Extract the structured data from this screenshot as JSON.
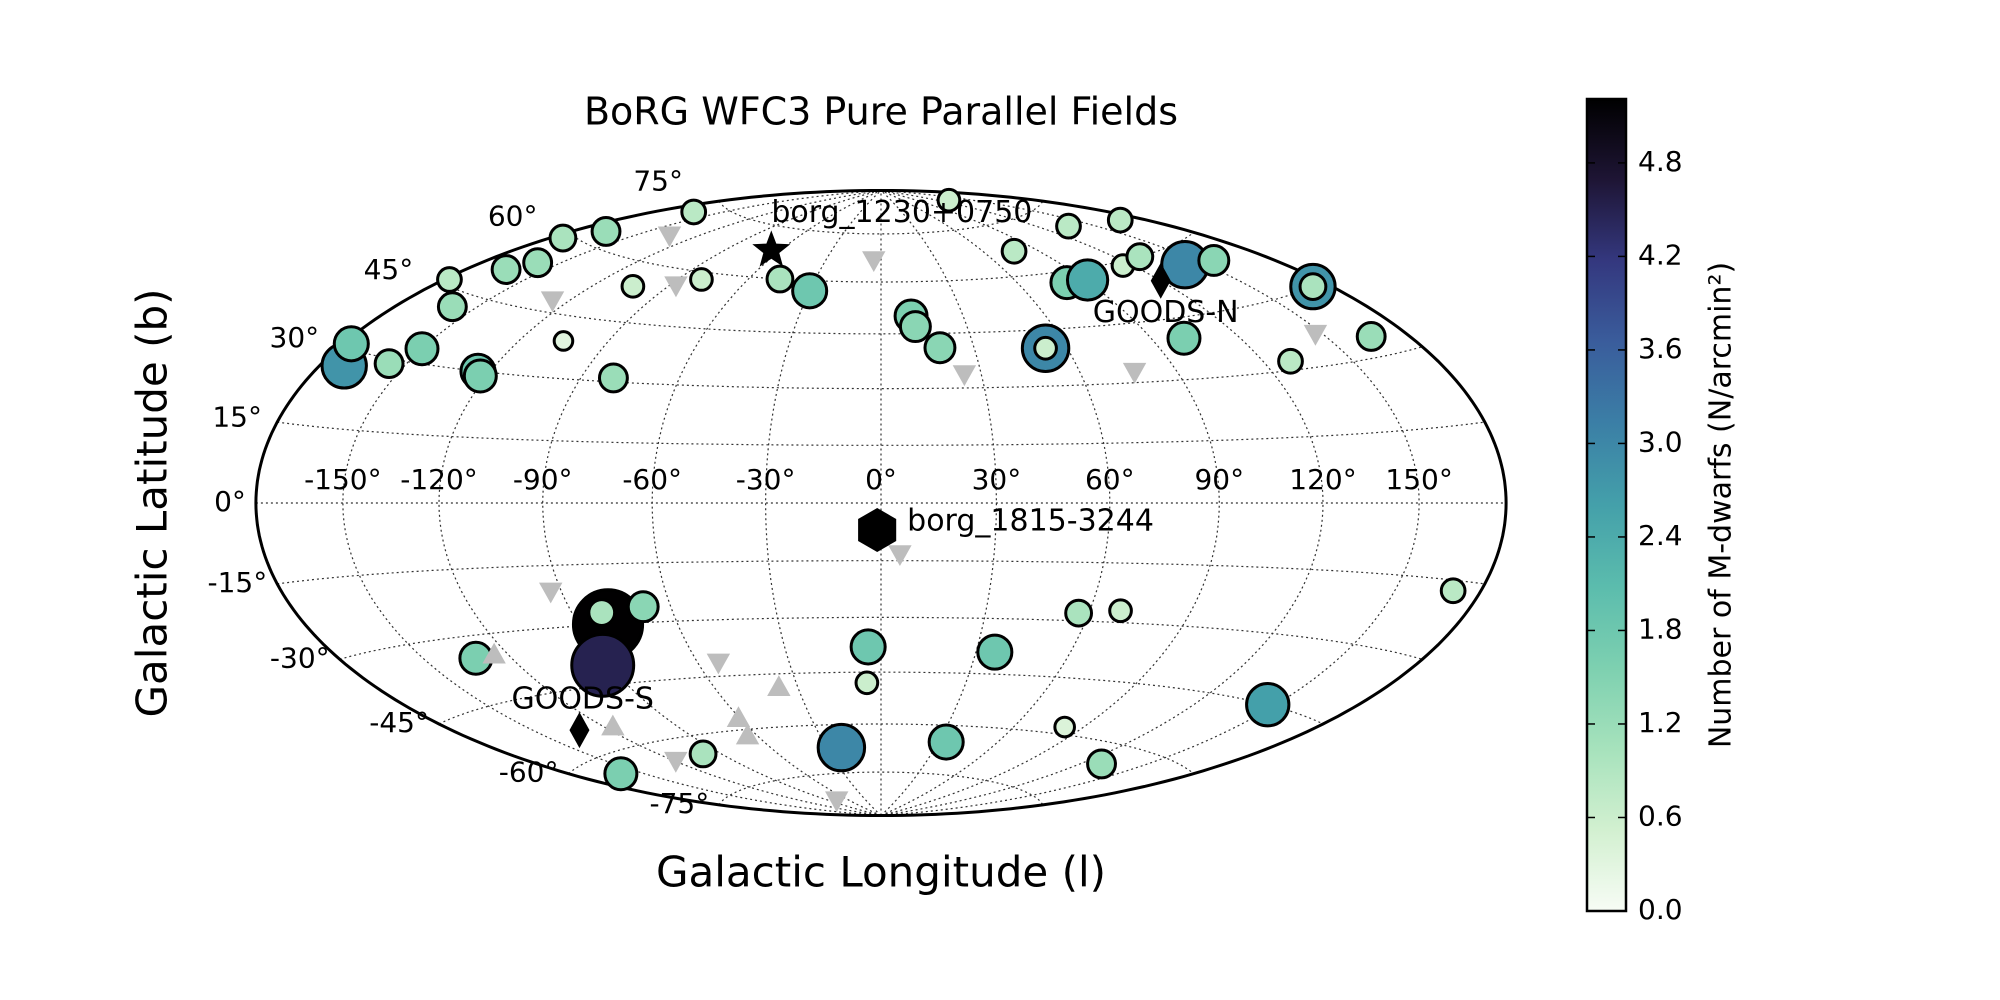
{
  "chart_data": {
    "type": "scatter",
    "projection": "hammer",
    "title": "BoRG WFC3 Pure Parallel Fields",
    "x_label": "Galactic Longitude (l)",
    "y_label": "Galactic Latitude (b)",
    "xlim": [
      -180,
      180
    ],
    "ylim": [
      -90,
      90
    ],
    "grid": true,
    "xticks": [
      {
        "value": -150,
        "label": "-150°"
      },
      {
        "value": -120,
        "label": "-120°"
      },
      {
        "value": -90,
        "label": "-90°"
      },
      {
        "value": -60,
        "label": "-60°"
      },
      {
        "value": -30,
        "label": "-30°"
      },
      {
        "value": 0,
        "label": "0°"
      },
      {
        "value": 30,
        "label": "30°"
      },
      {
        "value": 60,
        "label": "60°"
      },
      {
        "value": 90,
        "label": "90°"
      },
      {
        "value": 120,
        "label": "120°"
      },
      {
        "value": 150,
        "label": "150°"
      }
    ],
    "yticks": [
      {
        "value": -75,
        "label": "-75°"
      },
      {
        "value": -60,
        "label": "-60°"
      },
      {
        "value": -45,
        "label": "-45°"
      },
      {
        "value": -30,
        "label": "-30°"
      },
      {
        "value": -15,
        "label": "-15°"
      },
      {
        "value": 0,
        "label": "0°"
      },
      {
        "value": 15,
        "label": "15°"
      },
      {
        "value": 30,
        "label": "30°"
      },
      {
        "value": 45,
        "label": "45°"
      },
      {
        "value": 60,
        "label": "60°"
      },
      {
        "value": 75,
        "label": "75°"
      }
    ],
    "series": [
      {
        "marker": "o",
        "x": [
          -171,
          -177,
          -156,
          -150,
          -124,
          -122,
          -159,
          -178,
          -165,
          -159,
          -175,
          -167,
          -164,
          -104,
          -80,
          -46,
          -30,
          -80,
          -105,
          11,
          12,
          19,
          132,
          77,
          137,
          170,
          81,
          91,
          116,
          131,
          142,
          157,
          53,
          53,
          101,
          173,
          173,
          166,
          129,
          -81,
          -81,
          -68,
          -92,
          -132,
          -160,
          -99,
          -22,
          -4,
          -5,
          34,
          36,
          57,
          69,
          82,
          130,
          147,
          170
        ],
        "y": [
          27,
          31,
          29,
          33,
          30,
          29,
          42,
          46,
          51,
          54,
          59,
          63,
          72,
          54,
          58,
          60,
          57,
          31,
          39,
          50,
          47,
          41,
          83,
          67,
          70,
          67,
          57,
          57,
          59,
          60,
          56,
          55,
          40,
          40,
          40,
          45,
          45,
          34,
          32,
          -30,
          -27,
          -26,
          -40,
          -35,
          -64,
          -65,
          -67,
          -38,
          -48,
          -65,
          -39,
          -28,
          -27,
          -58,
          -65,
          -45,
          -17
        ],
        "values": [
          2.8,
          1.8,
          1.2,
          1.6,
          1.8,
          1.6,
          1.2,
          0.8,
          1.2,
          1.2,
          1.0,
          1.2,
          0.8,
          0.6,
          0.6,
          1.0,
          1.8,
          1.2,
          0.3,
          1.6,
          1.4,
          1.4,
          0.6,
          0.8,
          0.8,
          0.8,
          1.6,
          2.4,
          0.6,
          1.0,
          3.0,
          1.4,
          3.0,
          0.6,
          1.6,
          2.8,
          1.0,
          1.2,
          0.8,
          5.2,
          1.0,
          1.4,
          4.5,
          1.6,
          1.6,
          1.0,
          3.0,
          1.8,
          0.6,
          1.8,
          1.8,
          1.0,
          0.6,
          0.4,
          1.2,
          2.6,
          0.8
        ]
      },
      {
        "marker": "v",
        "color": "#bdbdbd",
        "x": [
          -136,
          -127,
          -88,
          -4,
          25,
          77,
          148,
          -93,
          5,
          -53,
          -118,
          -75
        ],
        "y": [
          67,
          48,
          56,
          67,
          34,
          33,
          37,
          -21,
          -13,
          -41,
          -65,
          -83
        ]
      },
      {
        "marker": "^",
        "color": "#bdbdbd",
        "x": [
          -125,
          -37,
          -61,
          -65,
          -117
        ],
        "y": [
          -35,
          -49,
          -57,
          -62,
          -55
        ]
      }
    ],
    "annotations": [
      {
        "text": "borg_1230+0750",
        "marker": "star",
        "x": -65,
        "y": 68
      },
      {
        "text": "GOODS-N",
        "marker": "diamond",
        "x": 120,
        "y": 54
      },
      {
        "text": "borg_1815-3244",
        "marker": "hexagon",
        "x": -1,
        "y": -7
      },
      {
        "text": "GOODS-S",
        "marker": "diamond",
        "x": -132,
        "y": -54
      }
    ],
    "colorbar": {
      "label": "Number of M-dwarfs (N/arcmin²)",
      "lim": [
        0,
        5.21
      ],
      "ticks": [
        {
          "value": 0,
          "label": "0.0"
        },
        0.6,
        1.2,
        1.8,
        2.4,
        {
          "value": 3,
          "label": "3.0"
        },
        3.6,
        4.2,
        4.8
      ],
      "colormap": [
        "#f7fcf5",
        "#d2f0d0",
        "#a6e2bc",
        "#7dd0b0",
        "#5bbcad",
        "#44a0aa",
        "#3b7fa6",
        "#3a5d9c",
        "#34387f",
        "#1e1535",
        "#000000"
      ]
    }
  }
}
